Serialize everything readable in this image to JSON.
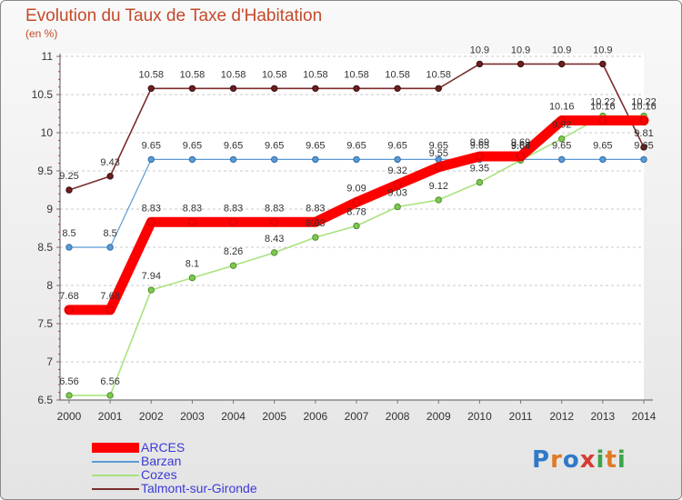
{
  "header": {
    "title": "Evolution du Taux de Taxe d'Habitation",
    "unit": "(en %)"
  },
  "logo_text": "Proxiti",
  "chart_data": {
    "type": "line",
    "title": "Evolution du Taux de Taxe d'Habitation",
    "subtitle": "(en %)",
    "xlabel": "",
    "ylabel": "",
    "x": [
      "2000",
      "2001",
      "2002",
      "2003",
      "2004",
      "2005",
      "2006",
      "2007",
      "2008",
      "2009",
      "2010",
      "2011",
      "2012",
      "2013",
      "2014"
    ],
    "ylim": [
      6.5,
      11
    ],
    "yticks": [
      "6.5",
      "7",
      "7.5",
      "8",
      "8.5",
      "9",
      "9.5",
      "10",
      "10.5",
      "11"
    ],
    "grid": "horizontal dashed",
    "legend_position": "bottom-left",
    "series": [
      {
        "name": "ARCES",
        "color": "#ff0000",
        "values": [
          7.68,
          7.68,
          8.83,
          8.83,
          8.83,
          8.83,
          8.83,
          9.09,
          9.32,
          9.55,
          9.69,
          9.69,
          10.16,
          10.16,
          10.16
        ],
        "labels": [
          "7.68",
          "7.68",
          "8.83",
          "8.83",
          "8.83",
          "8.83",
          "8.83",
          "9.09",
          "9.32",
          "9.55",
          "9.69",
          "9.69",
          "10.16",
          "10.16",
          "10.16"
        ]
      },
      {
        "name": "Barzan",
        "color": "#5b9bd5",
        "values": [
          8.5,
          8.5,
          9.65,
          9.65,
          9.65,
          9.65,
          9.65,
          9.65,
          9.65,
          9.65,
          9.65,
          9.65,
          9.65,
          9.65,
          9.65
        ],
        "labels": [
          "8.5",
          "8.5",
          "9.65",
          "9.65",
          "9.65",
          "9.65",
          "9.65",
          "9.65",
          "9.65",
          "9.65",
          "9.65",
          "9.65",
          "9.65",
          "9.65",
          "9.65"
        ]
      },
      {
        "name": "Cozes",
        "color": "#a9e37e",
        "values": [
          6.56,
          6.56,
          7.94,
          8.1,
          8.26,
          8.43,
          8.63,
          8.78,
          9.03,
          9.12,
          9.35,
          9.64,
          9.92,
          10.22,
          10.22
        ],
        "labels": [
          "6.56",
          "6.56",
          "7.94",
          "8.1",
          "8.26",
          "8.43",
          "8.63",
          "8.78",
          "9.03",
          "9.12",
          "9.35",
          "9.64",
          "9.92",
          "10.22",
          "10.22"
        ]
      },
      {
        "name": "Talmont-sur-Gironde",
        "color": "#7b2c2c",
        "values": [
          9.25,
          9.43,
          10.58,
          10.58,
          10.58,
          10.58,
          10.58,
          10.58,
          10.58,
          10.58,
          10.9,
          10.9,
          10.9,
          10.9,
          9.81
        ],
        "labels": [
          "9.25",
          "9.43",
          "10.58",
          "10.58",
          "10.58",
          "10.58",
          "10.58",
          "10.58",
          "10.58",
          "10.58",
          "10.9",
          "10.9",
          "10.9",
          "10.9",
          "9.81"
        ]
      }
    ]
  }
}
